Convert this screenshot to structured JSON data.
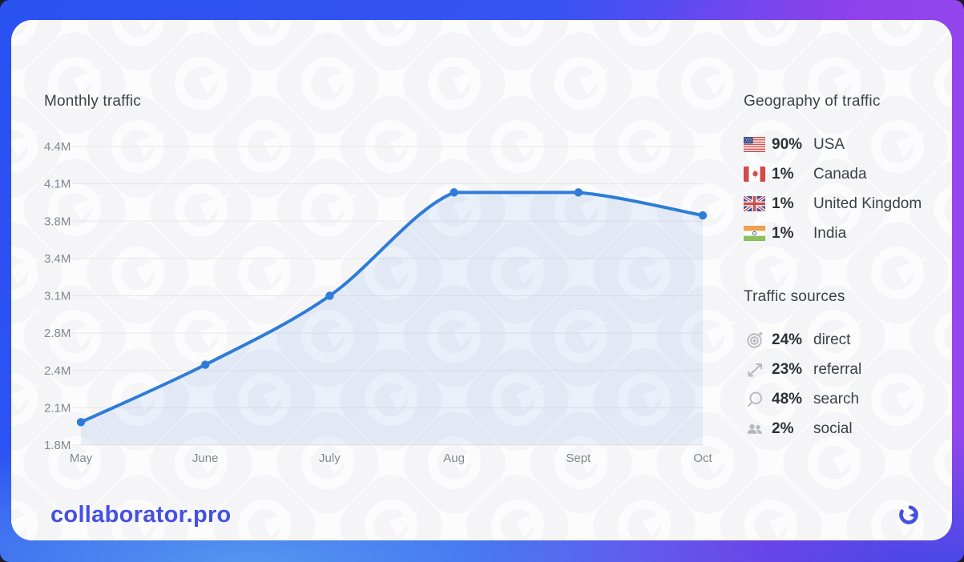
{
  "brand": {
    "name": "collaborator.pro",
    "logo_icon": "collaborator-logo-icon"
  },
  "chart_data": {
    "type": "line",
    "title": "Monthly traffic",
    "categories": [
      "May",
      "June",
      "July",
      "Aug",
      "Sept",
      "Oct"
    ],
    "series": [
      {
        "name": "Monthly traffic (millions of visits)",
        "values": [
          2.0,
          2.5,
          3.1,
          4.0,
          4.0,
          3.8
        ]
      }
    ],
    "unit": "M",
    "y_ticks": [
      "4.4M",
      "4.1M",
      "3.8M",
      "3.4M",
      "3.1M",
      "2.8M",
      "2.4M",
      "2.1M",
      "1.8M"
    ],
    "y_tick_values": [
      4.4,
      4.1,
      3.8,
      3.4,
      3.1,
      2.8,
      2.4,
      2.1,
      1.8
    ],
    "ylim": [
      1.8,
      4.4
    ],
    "grid": true,
    "legend": "none",
    "line_color": "#2e7cd9",
    "point_color": "#2e7cd9",
    "area_fill": "rgba(46,124,217,0.09)",
    "grid_color": "#e6e6e9"
  },
  "geography": {
    "title": "Geography of traffic",
    "items": [
      {
        "icon": "flag-usa-icon",
        "percent": "90%",
        "label": "USA"
      },
      {
        "icon": "flag-canada-icon",
        "percent": "1%",
        "label": "Canada"
      },
      {
        "icon": "flag-uk-icon",
        "percent": "1%",
        "label": "United Kingdom"
      },
      {
        "icon": "flag-india-icon",
        "percent": "1%",
        "label": "India"
      }
    ]
  },
  "sources": {
    "title": "Traffic sources",
    "items": [
      {
        "icon": "target-icon",
        "percent": "24%",
        "label": "direct"
      },
      {
        "icon": "referral-arrows-icon",
        "percent": "23%",
        "label": "referral"
      },
      {
        "icon": "search-icon",
        "percent": "48%",
        "label": "search"
      },
      {
        "icon": "social-users-icon",
        "percent": "2%",
        "label": "social"
      }
    ]
  },
  "colors": {
    "accent_blue": "#2e7cd9",
    "brand_indigo": "#4550e1",
    "frame_gradient_start": "#2a52f1",
    "frame_gradient_end": "#9747ef",
    "text_dark": "#2c3138",
    "text_muted": "#82878f"
  }
}
